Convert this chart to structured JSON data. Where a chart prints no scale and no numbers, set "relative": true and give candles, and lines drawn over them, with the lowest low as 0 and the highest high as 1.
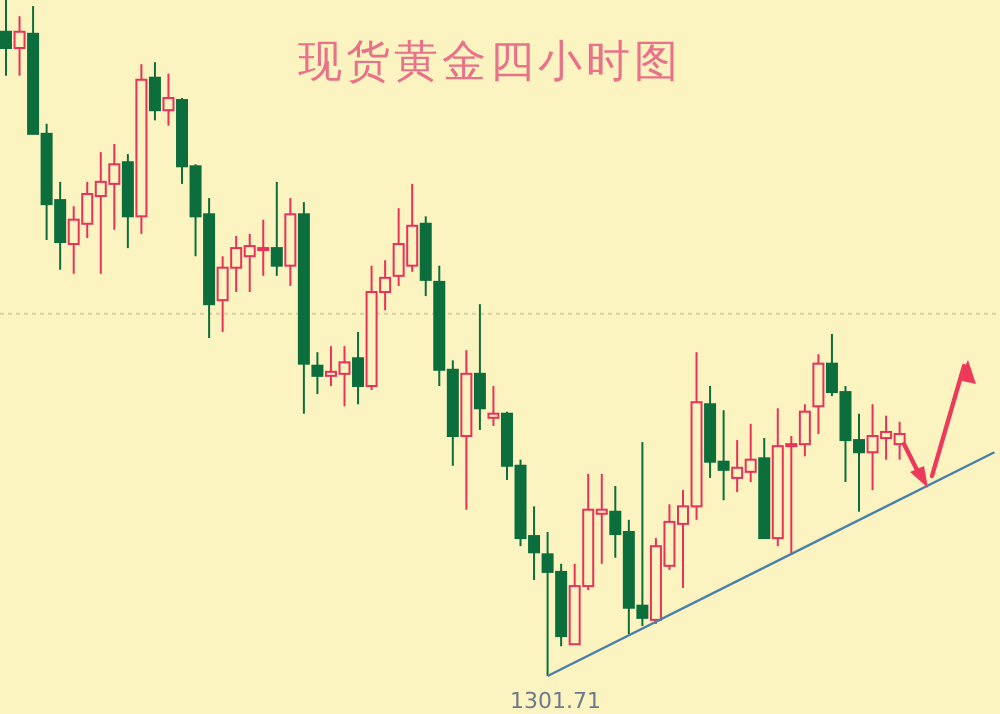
{
  "chart_data": {
    "type": "candlestick",
    "title": "现货黄金四小时图",
    "relative": true,
    "categories": [
      null,
      null,
      null,
      null,
      null,
      null,
      null,
      null,
      null,
      null,
      null,
      null,
      null,
      null,
      null,
      null,
      null,
      null,
      null,
      null,
      null,
      null,
      null,
      null,
      null,
      null,
      null,
      null,
      null,
      null,
      null,
      null,
      null,
      null,
      null,
      null,
      null,
      null,
      null,
      null,
      null,
      null,
      null,
      null,
      null,
      null,
      null,
      null,
      null,
      null,
      null,
      null,
      null,
      null,
      null,
      null,
      null,
      null,
      null,
      null,
      null,
      null,
      null,
      null,
      null,
      null,
      null,
      null,
      null,
      null,
      null,
      null,
      null,
      null
    ],
    "ohlc": [
      [
        0.953,
        1.0,
        0.888,
        0.929
      ],
      [
        0.929,
        0.976,
        0.888,
        0.953
      ],
      [
        0.95,
        0.991,
        0.802,
        0.802
      ],
      [
        0.802,
        0.817,
        0.645,
        0.698
      ],
      [
        0.704,
        0.731,
        0.601,
        0.642
      ],
      [
        0.639,
        0.695,
        0.595,
        0.675
      ],
      [
        0.669,
        0.731,
        0.648,
        0.713
      ],
      [
        0.71,
        0.775,
        0.595,
        0.731
      ],
      [
        0.728,
        0.787,
        0.66,
        0.757
      ],
      [
        0.76,
        0.772,
        0.633,
        0.68
      ],
      [
        0.68,
        0.905,
        0.654,
        0.882
      ],
      [
        0.885,
        0.908,
        0.822,
        0.837
      ],
      [
        0.837,
        0.891,
        0.814,
        0.855
      ],
      [
        0.852,
        0.855,
        0.728,
        0.754
      ],
      [
        0.754,
        0.757,
        0.621,
        0.68
      ],
      [
        0.683,
        0.707,
        0.5,
        0.55
      ],
      [
        0.556,
        0.621,
        0.509,
        0.604
      ],
      [
        0.604,
        0.651,
        0.568,
        0.633
      ],
      [
        0.621,
        0.654,
        0.568,
        0.636
      ],
      [
        0.63,
        0.675,
        0.592,
        0.633
      ],
      [
        0.633,
        0.731,
        0.592,
        0.607
      ],
      [
        0.607,
        0.707,
        0.577,
        0.683
      ],
      [
        0.683,
        0.701,
        0.388,
        0.462
      ],
      [
        0.459,
        0.479,
        0.417,
        0.444
      ],
      [
        0.444,
        0.488,
        0.429,
        0.45
      ],
      [
        0.447,
        0.488,
        0.399,
        0.464
      ],
      [
        0.47,
        0.509,
        0.402,
        0.429
      ],
      [
        0.429,
        0.607,
        0.423,
        0.568
      ],
      [
        0.568,
        0.615,
        0.541,
        0.589
      ],
      [
        0.592,
        0.692,
        0.577,
        0.639
      ],
      [
        0.607,
        0.728,
        0.598,
        0.666
      ],
      [
        0.669,
        0.68,
        0.562,
        0.586
      ],
      [
        0.583,
        0.607,
        0.429,
        0.453
      ],
      [
        0.453,
        0.467,
        0.311,
        0.355
      ],
      [
        0.355,
        0.482,
        0.246,
        0.447
      ],
      [
        0.447,
        0.55,
        0.364,
        0.396
      ],
      [
        0.382,
        0.429,
        0.37,
        0.388
      ],
      [
        0.388,
        0.391,
        0.29,
        0.311
      ],
      [
        0.311,
        0.32,
        0.192,
        0.204
      ],
      [
        0.207,
        0.251,
        0.142,
        0.183
      ],
      [
        0.18,
        0.213,
        0.0,
        0.154
      ],
      [
        0.154,
        0.166,
        0.044,
        0.059
      ],
      [
        0.047,
        0.166,
        0.047,
        0.133
      ],
      [
        0.133,
        0.299,
        0.127,
        0.246
      ],
      [
        0.24,
        0.299,
        0.166,
        0.246
      ],
      [
        0.243,
        0.281,
        0.175,
        0.21
      ],
      [
        0.213,
        0.231,
        0.062,
        0.101
      ],
      [
        0.104,
        0.346,
        0.074,
        0.086
      ],
      [
        0.083,
        0.204,
        0.077,
        0.192
      ],
      [
        0.163,
        0.254,
        0.157,
        0.228
      ],
      [
        0.225,
        0.275,
        0.13,
        0.251
      ],
      [
        0.251,
        0.479,
        0.231,
        0.405
      ],
      [
        0.402,
        0.429,
        0.293,
        0.317
      ],
      [
        0.317,
        0.393,
        0.26,
        0.305
      ],
      [
        0.293,
        0.349,
        0.272,
        0.308
      ],
      [
        0.302,
        0.373,
        0.287,
        0.32
      ],
      [
        0.322,
        0.352,
        0.204,
        0.204
      ],
      [
        0.204,
        0.396,
        0.192,
        0.34
      ],
      [
        0.34,
        0.355,
        0.18,
        0.343
      ],
      [
        0.343,
        0.402,
        0.325,
        0.391
      ],
      [
        0.399,
        0.476,
        0.358,
        0.462
      ],
      [
        0.462,
        0.506,
        0.414,
        0.42
      ],
      [
        0.42,
        0.429,
        0.287,
        0.349
      ],
      [
        0.349,
        0.388,
        0.243,
        0.331
      ],
      [
        0.331,
        0.402,
        0.275,
        0.355
      ],
      [
        0.352,
        0.385,
        0.32,
        0.361
      ],
      [
        0.343,
        0.376,
        0.32,
        0.358
      ],
      null,
      null,
      null,
      null,
      null,
      null,
      null
    ],
    "colors": [
      "#0b6e3c",
      "#e8325a",
      "#0b6e3c",
      "#0b6e3c",
      "#0b6e3c",
      "#e8325a",
      "#e8325a",
      "#e8325a",
      "#e8325a",
      "#0b6e3c",
      "#e8325a",
      "#0b6e3c",
      "#e8325a",
      "#0b6e3c",
      "#0b6e3c",
      "#0b6e3c",
      "#e8325a",
      "#e8325a",
      "#e8325a",
      "#e8325a",
      "#0b6e3c",
      "#e8325a",
      "#0b6e3c",
      "#0b6e3c",
      "#e8325a",
      "#e8325a",
      "#0b6e3c",
      "#e8325a",
      "#e8325a",
      "#e8325a",
      "#e8325a",
      "#0b6e3c",
      "#0b6e3c",
      "#0b6e3c",
      "#e8325a",
      "#0b6e3c",
      "#e8325a",
      "#0b6e3c",
      "#0b6e3c",
      "#0b6e3c",
      "#0b6e3c",
      "#0b6e3c",
      "#e8325a",
      "#e8325a",
      "#e8325a",
      "#0b6e3c",
      "#0b6e3c",
      "#0b6e3c",
      "#e8325a",
      "#e8325a",
      "#e8325a",
      "#e8325a",
      "#0b6e3c",
      "#0b6e3c",
      "#e8325a",
      "#e8325a",
      "#0b6e3c",
      "#e8325a",
      "#e8325a",
      "#e8325a",
      "#e8325a",
      "#0b6e3c",
      "#0b6e3c",
      "#0b6e3c",
      "#e8325a",
      "#e8325a",
      "#e8325a",
      null,
      null,
      null,
      null,
      null,
      null,
      null
    ],
    "series": [
      {
        "type": "line",
        "color": "#4a7fa8",
        "values": [
          null,
          null,
          null,
          null,
          null,
          null,
          null,
          null,
          null,
          null,
          null,
          null,
          null,
          null,
          null,
          null,
          null,
          null,
          null,
          null,
          null,
          null,
          null,
          null,
          null,
          null,
          null,
          null,
          null,
          null,
          null,
          null,
          null,
          null,
          null,
          null,
          null,
          null,
          null,
          null,
          0.0,
          null,
          null,
          null,
          null,
          null,
          null,
          null,
          null,
          null,
          null,
          null,
          null,
          null,
          null,
          null,
          null,
          null,
          null,
          null,
          null,
          null,
          null,
          null,
          null,
          null,
          null,
          null,
          null,
          null,
          null,
          null,
          null,
          0.331
        ]
      }
    ],
    "ref_lines": [
      {
        "axis": "y",
        "value": 0.536,
        "color": "#d9cfa0",
        "line_style": "dotted"
      }
    ],
    "annotations": [
      {
        "text": "1301.71",
        "y": 0.0
      }
    ]
  }
}
